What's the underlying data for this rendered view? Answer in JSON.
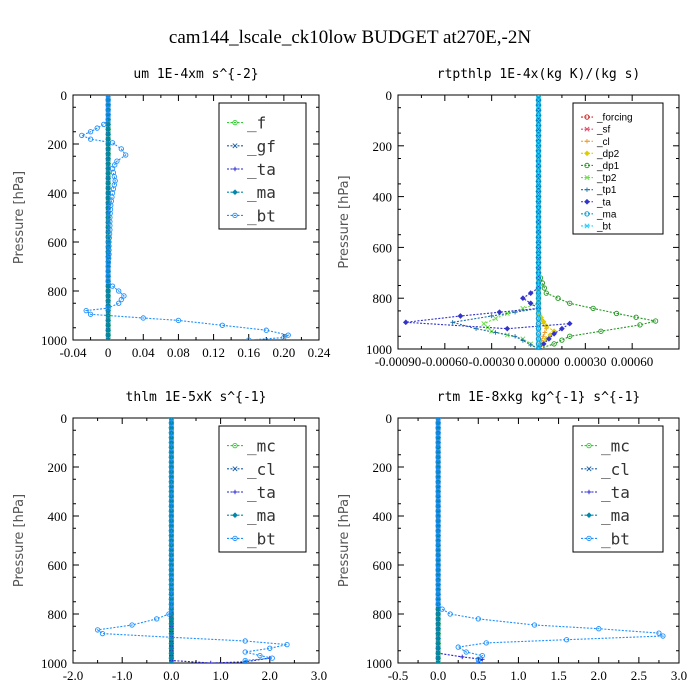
{
  "title": "cam144_lscale_ck10low  BUDGET at270E,-2N",
  "chart_data": [
    {
      "type": "line",
      "title": "um  1E-4xm s^{-2}",
      "ylabel": "Pressure [hPa]",
      "xlim": [
        -0.04,
        0.24
      ],
      "ylim": [
        1000,
        0
      ],
      "xticks": [
        "-0.04",
        "0",
        "0.04",
        "0.08",
        "0.12",
        "0.16",
        "0.20",
        "0.24"
      ],
      "xtick_values": [
        -0.04,
        0,
        0.04,
        0.08,
        0.12,
        0.16,
        0.2,
        0.24
      ],
      "yticks": [
        "0",
        "200",
        "400",
        "600",
        "800",
        "1000"
      ],
      "ytick_values": [
        0,
        200,
        400,
        600,
        800,
        1000
      ],
      "legend_style": "big",
      "series": [
        {
          "name": "_f",
          "color": "#33cc33",
          "points": [
            [
              0.0,
              0
            ],
            [
              0.0,
              1000
            ]
          ]
        },
        {
          "name": "_gf",
          "color": "#1a5fa8",
          "points": [
            [
              0.0,
              0
            ],
            [
              0.0,
              1000
            ]
          ]
        },
        {
          "name": "_ta",
          "color": "#2222cc",
          "points": [
            [
              0.0,
              0
            ],
            [
              0.0,
              1000
            ]
          ]
        },
        {
          "name": "_ma",
          "color": "#0088aa",
          "points": [
            [
              0.0,
              0
            ],
            [
              0.0,
              1000
            ]
          ]
        },
        {
          "name": "_bt",
          "color": "#1e90ff",
          "points": [
            [
              0.0,
              0
            ],
            [
              0.0,
              100
            ],
            [
              -0.005,
              120
            ],
            [
              -0.02,
              150
            ],
            [
              -0.03,
              165
            ],
            [
              -0.02,
              180
            ],
            [
              0.005,
              195
            ],
            [
              0.015,
              220
            ],
            [
              0.02,
              245
            ],
            [
              0.01,
              270
            ],
            [
              0.005,
              300
            ],
            [
              0.008,
              350
            ],
            [
              0.005,
              400
            ],
            [
              0.003,
              450
            ],
            [
              0.002,
              500
            ],
            [
              0.002,
              550
            ],
            [
              0.001,
              600
            ],
            [
              0.001,
              650
            ],
            [
              0.0,
              700
            ],
            [
              0.0,
              760
            ],
            [
              0.005,
              780
            ],
            [
              0.012,
              800
            ],
            [
              0.018,
              820
            ],
            [
              0.012,
              850
            ],
            [
              0.0,
              870
            ],
            [
              -0.025,
              880
            ],
            [
              -0.02,
              895
            ],
            [
              0.04,
              910
            ],
            [
              0.08,
              920
            ],
            [
              0.13,
              940
            ],
            [
              0.18,
              960
            ],
            [
              0.205,
              980
            ],
            [
              0.2,
              990
            ],
            [
              0.16,
              1000
            ]
          ]
        }
      ]
    },
    {
      "type": "line",
      "title": "rtpthlp  1E-4x(kg K)/(kg s)",
      "ylabel": "Pressure [hPa]",
      "xlim": [
        -0.0009,
        0.0009
      ],
      "ylim": [
        1000,
        0
      ],
      "xticks": [
        "-0.00090",
        "-0.00060",
        "-0.00030",
        "0.00000",
        "0.00030",
        "0.00060"
      ],
      "xtick_values": [
        -0.0009,
        -0.0006,
        -0.0003,
        0.0,
        0.0003,
        0.0006
      ],
      "yticks": [
        "0",
        "200",
        "400",
        "600",
        "800",
        "1000"
      ],
      "ytick_values": [
        0,
        200,
        400,
        600,
        800,
        1000
      ],
      "legend_style": "small",
      "series": [
        {
          "name": "_forcing",
          "color": "#cc2222",
          "points": [
            [
              0.0,
              0
            ],
            [
              0.0,
              1000
            ]
          ]
        },
        {
          "name": "_sf",
          "color": "#dd4466",
          "points": [
            [
              0.0,
              0
            ],
            [
              0.0,
              1000
            ]
          ]
        },
        {
          "name": "_cl",
          "color": "#ee9922",
          "points": [
            [
              0.0,
              0
            ],
            [
              0.0,
              850
            ],
            [
              3e-05,
              900
            ],
            [
              5e-05,
              920
            ],
            [
              3e-05,
              950
            ],
            [
              0.0,
              1000
            ]
          ]
        },
        {
          "name": "_dp2",
          "color": "#ddcc00",
          "points": [
            [
              0.0,
              0
            ],
            [
              0.0,
              860
            ],
            [
              5e-05,
              910
            ],
            [
              0.0001,
              930
            ],
            [
              5e-05,
              960
            ],
            [
              0.0,
              1000
            ]
          ]
        },
        {
          "name": "_dp1",
          "color": "#229922",
          "points": [
            [
              0.0,
              0
            ],
            [
              0.0,
              700
            ],
            [
              5e-05,
              780
            ],
            [
              0.0002,
              820
            ],
            [
              0.0005,
              860
            ],
            [
              0.00075,
              890
            ],
            [
              0.00065,
              905
            ],
            [
              0.0004,
              930
            ],
            [
              0.0002,
              950
            ],
            [
              0.0001,
              980
            ],
            [
              0.0,
              1000
            ]
          ]
        },
        {
          "name": "_tp2",
          "color": "#66dd44",
          "points": [
            [
              0.0,
              0
            ],
            [
              0.0,
              820
            ],
            [
              -0.0002,
              860
            ],
            [
              -0.00035,
              900
            ],
            [
              -0.0003,
              930
            ],
            [
              -0.0001,
              960
            ],
            [
              0.0,
              1000
            ]
          ]
        },
        {
          "name": "_tp1",
          "color": "#1a6fa8",
          "points": [
            [
              0.0,
              0
            ],
            [
              0.0,
              840
            ],
            [
              -0.0003,
              870
            ],
            [
              -0.00055,
              895
            ],
            [
              -0.0004,
              920
            ],
            [
              -0.00015,
              950
            ],
            [
              0.0,
              1000
            ]
          ]
        },
        {
          "name": "_ta",
          "color": "#3333cc",
          "points": [
            [
              0.0,
              0
            ],
            [
              0.0,
              760
            ],
            [
              -0.0001,
              800
            ],
            [
              0.0,
              840
            ],
            [
              -0.0005,
              870
            ],
            [
              -0.00085,
              895
            ],
            [
              -0.0002,
              920
            ],
            [
              0.0002,
              900
            ],
            [
              0.0001,
              940
            ],
            [
              0.0,
              1000
            ]
          ]
        },
        {
          "name": "_ma",
          "color": "#0099cc",
          "points": [
            [
              0.0,
              0
            ],
            [
              0.0,
              1000
            ]
          ]
        },
        {
          "name": "_bt",
          "color": "#22ccff",
          "points": [
            [
              0.0,
              0
            ],
            [
              0.0,
              1000
            ]
          ]
        }
      ]
    },
    {
      "type": "line",
      "title": "thlm  1E-5xK s^{-1}",
      "ylabel": "Pressure [hPa]",
      "xlim": [
        -2.0,
        3.0
      ],
      "ylim": [
        1000,
        0
      ],
      "xticks": [
        "-2.0",
        "-1.0",
        "0.0",
        "1.0",
        "2.0",
        "3.0"
      ],
      "xtick_values": [
        -2.0,
        -1.0,
        0.0,
        1.0,
        2.0,
        3.0
      ],
      "yticks": [
        "0",
        "200",
        "400",
        "600",
        "800",
        "1000"
      ],
      "ytick_values": [
        0,
        200,
        400,
        600,
        800,
        1000
      ],
      "legend_style": "big",
      "series": [
        {
          "name": "_mc",
          "color": "#33cc33",
          "points": [
            [
              0.0,
              0
            ],
            [
              0.0,
              1000
            ]
          ]
        },
        {
          "name": "_cl",
          "color": "#1a5fa8",
          "points": [
            [
              0.0,
              0
            ],
            [
              0.0,
              1000
            ]
          ]
        },
        {
          "name": "_ta",
          "color": "#2222cc",
          "points": [
            [
              0.0,
              0
            ],
            [
              0.0,
              990
            ],
            [
              0.8,
              1000
            ],
            [
              1.5,
              995
            ],
            [
              2.0,
              980
            ]
          ]
        },
        {
          "name": "_ma",
          "color": "#0088aa",
          "points": [
            [
              0.0,
              0
            ],
            [
              0.0,
              1000
            ]
          ]
        },
        {
          "name": "_bt",
          "color": "#1e90ff",
          "points": [
            [
              0.0,
              0
            ],
            [
              0.0,
              780
            ],
            [
              -0.05,
              800
            ],
            [
              -0.3,
              820
            ],
            [
              -0.8,
              845
            ],
            [
              -1.5,
              865
            ],
            [
              -1.4,
              880
            ],
            [
              0.0,
              895
            ],
            [
              1.5,
              910
            ],
            [
              2.35,
              925
            ],
            [
              2.0,
              940
            ],
            [
              1.5,
              955
            ],
            [
              1.8,
              970
            ],
            [
              2.05,
              980
            ],
            [
              1.5,
              990
            ],
            [
              1.5,
              1000
            ]
          ]
        }
      ]
    },
    {
      "type": "line",
      "title": "rtm  1E-8xkg kg^{-1} s^{-1}",
      "ylabel": "Pressure [hPa]",
      "xlim": [
        -0.5,
        3.0
      ],
      "ylim": [
        1000,
        0
      ],
      "xticks": [
        "-0.5",
        "0.0",
        "0.5",
        "1.0",
        "1.5",
        "2.0",
        "2.5",
        "3.0"
      ],
      "xtick_values": [
        -0.5,
        0.0,
        0.5,
        1.0,
        1.5,
        2.0,
        2.5,
        3.0
      ],
      "yticks": [
        "0",
        "200",
        "400",
        "600",
        "800",
        "1000"
      ],
      "ytick_values": [
        0,
        200,
        400,
        600,
        800,
        1000
      ],
      "legend_style": "big",
      "series": [
        {
          "name": "_mc",
          "color": "#33cc33",
          "points": [
            [
              0.0,
              0
            ],
            [
              0.0,
              1000
            ]
          ]
        },
        {
          "name": "_cl",
          "color": "#1a5fa8",
          "points": [
            [
              0.0,
              0
            ],
            [
              0.0,
              1000
            ]
          ]
        },
        {
          "name": "_ta",
          "color": "#2222cc",
          "points": [
            [
              0.0,
              0
            ],
            [
              0.0,
              960
            ],
            [
              0.3,
              975
            ],
            [
              0.55,
              985
            ],
            [
              0.5,
              1000
            ]
          ]
        },
        {
          "name": "_ma",
          "color": "#0088aa",
          "points": [
            [
              0.0,
              0
            ],
            [
              0.0,
              1000
            ]
          ]
        },
        {
          "name": "_bt",
          "color": "#1e90ff",
          "points": [
            [
              0.0,
              0
            ],
            [
              0.0,
              760
            ],
            [
              0.05,
              780
            ],
            [
              0.15,
              800
            ],
            [
              0.5,
              820
            ],
            [
              1.2,
              845
            ],
            [
              2.0,
              860
            ],
            [
              2.75,
              878
            ],
            [
              2.8,
              890
            ],
            [
              1.6,
              905
            ],
            [
              0.6,
              918
            ],
            [
              0.25,
              935
            ],
            [
              0.35,
              955
            ],
            [
              0.55,
              970
            ],
            [
              0.5,
              985
            ],
            [
              0.5,
              1000
            ]
          ]
        }
      ]
    }
  ]
}
